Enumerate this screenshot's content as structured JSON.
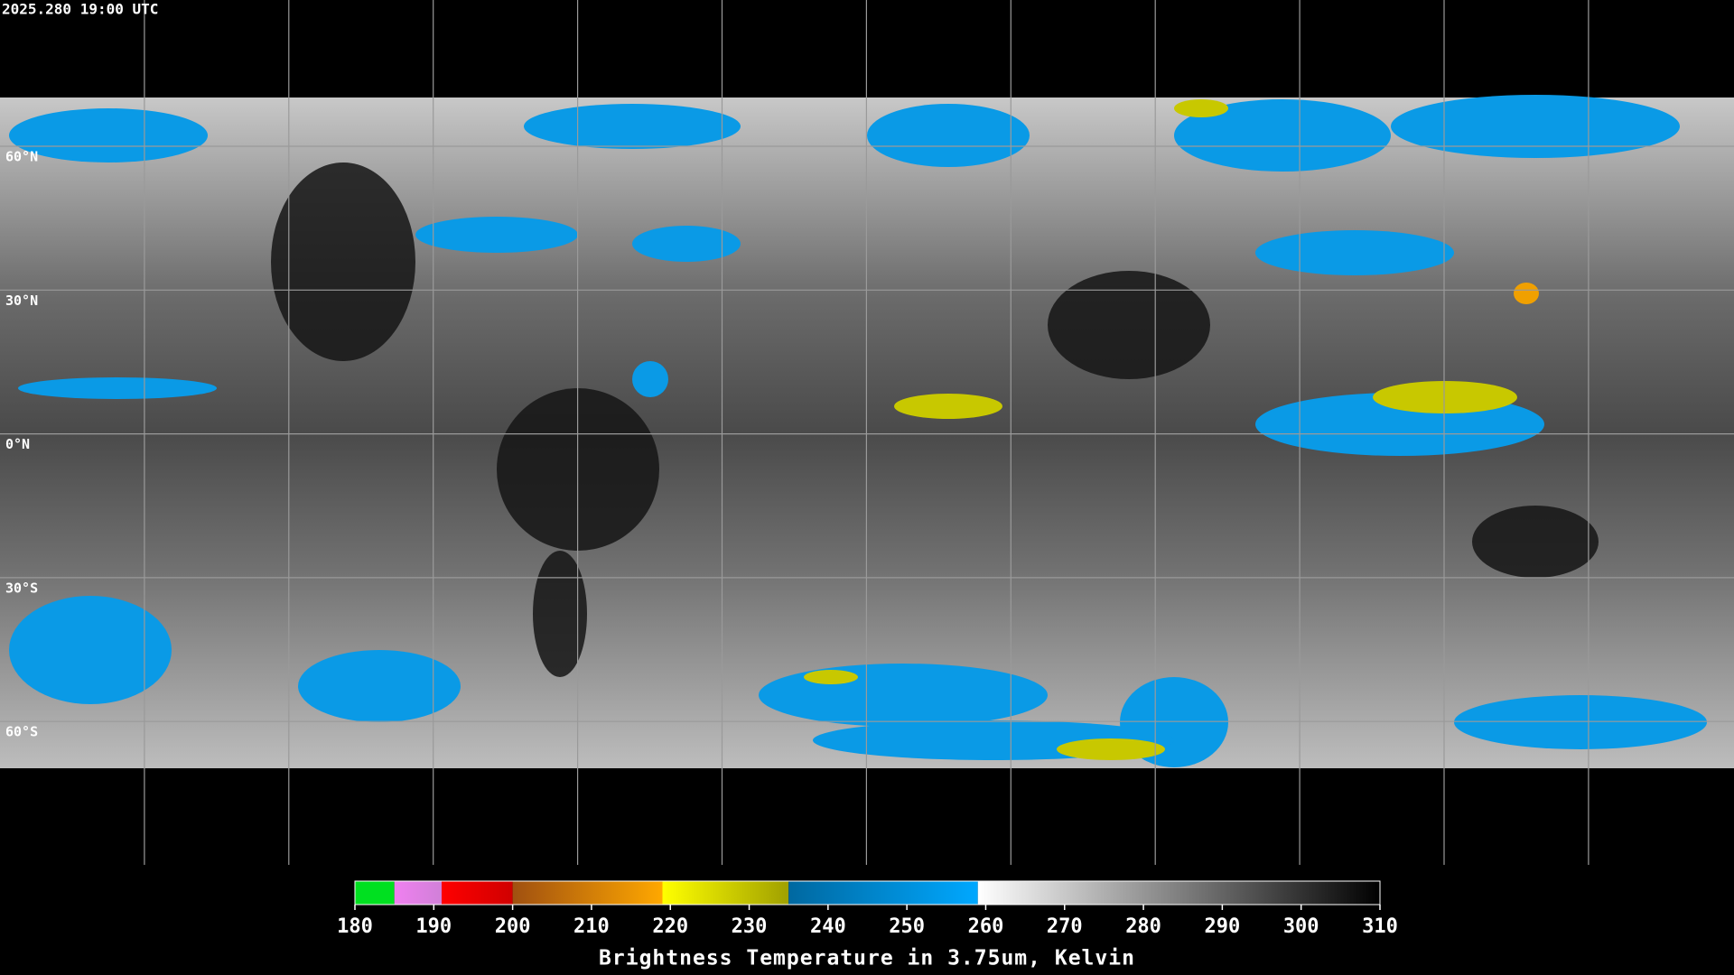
{
  "timestamp": "2025.280 19:00 UTC",
  "lat_labels": [
    "60°N",
    "30°N",
    "0°N",
    "30°S",
    "60°S"
  ],
  "colorbar": {
    "title": "Brightness Temperature in 3.75um, Kelvin",
    "range": [
      180,
      310
    ],
    "ticks": [
      180,
      190,
      200,
      210,
      220,
      230,
      240,
      250,
      260,
      270,
      280,
      290,
      300,
      310
    ],
    "segments": [
      {
        "from": 180,
        "to": 185,
        "colors": [
          "#00e020",
          "#00e020"
        ]
      },
      {
        "from": 185,
        "to": 191,
        "colors": [
          "#f080f0",
          "#d080d8"
        ]
      },
      {
        "from": 191,
        "to": 200,
        "colors": [
          "#ff0000",
          "#d00000"
        ]
      },
      {
        "from": 200,
        "to": 219,
        "colors": [
          "#a05010",
          "#ffa800"
        ]
      },
      {
        "from": 219,
        "to": 235,
        "colors": [
          "#ffff00",
          "#a0a000"
        ]
      },
      {
        "from": 235,
        "to": 259,
        "colors": [
          "#0068a0",
          "#00a8ff"
        ]
      },
      {
        "from": 259,
        "to": 310,
        "colors": [
          "#ffffff",
          "#000000"
        ]
      }
    ]
  }
}
